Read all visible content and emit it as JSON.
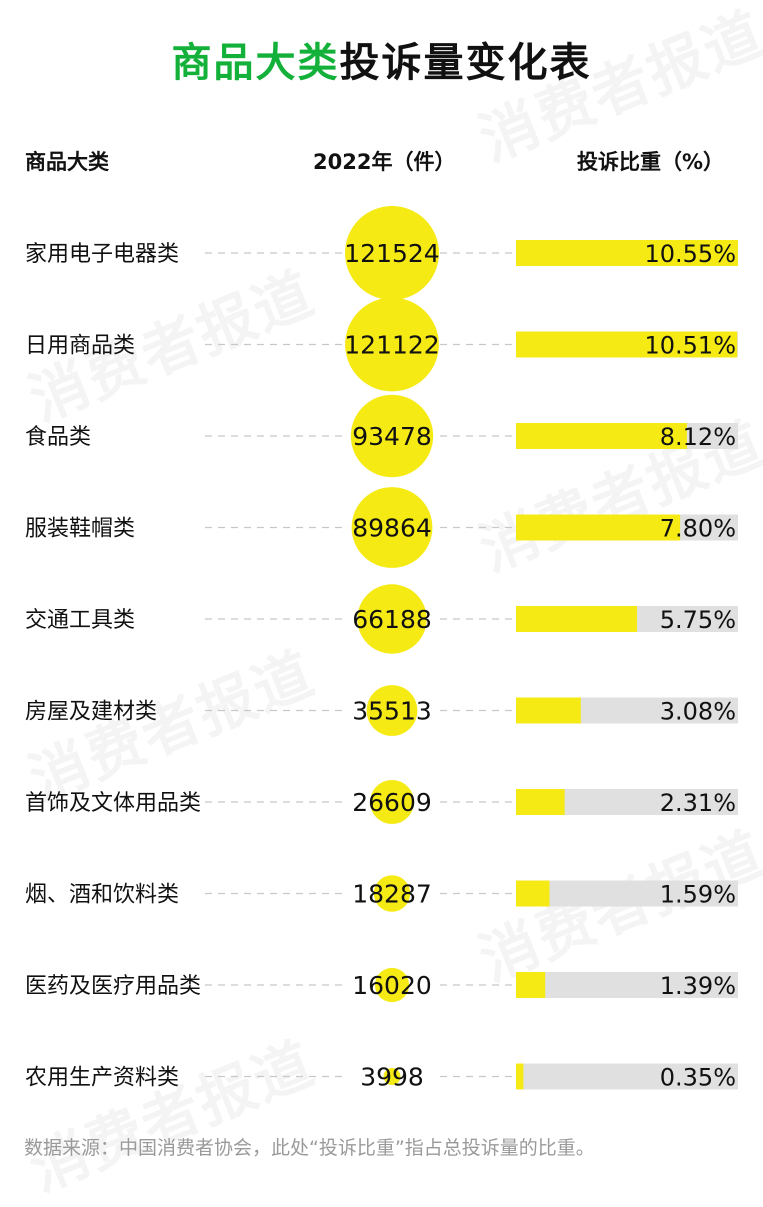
{
  "title": {
    "highlight": "商品大类",
    "rest": "投诉量变化表"
  },
  "headers": {
    "category": "商品大类",
    "count": "2022年（件）",
    "share": "投诉比重（%）"
  },
  "watermark": "消费者报道",
  "note": "数据来源：中国消费者协会，此处“投诉比重”指占总投诉量的比重。",
  "colors": {
    "title_accent": "#13b13a",
    "bubble": "#f5ea14",
    "bar": "#f5ea14",
    "bar_track": "#e0e0e0",
    "dash": "#c8c8c8"
  },
  "chart_data": {
    "type": "table",
    "categories": [
      "家用电子电器类",
      "日用商品类",
      "食品类",
      "服装鞋帽类",
      "交通工具类",
      "房屋及建材类",
      "首饰及文体用品类",
      "烟、酒和饮料类",
      "医药及医疗用品类",
      "农用生产资料类"
    ],
    "series": [
      {
        "name": "2022年（件）",
        "encoding": "bubble",
        "values": [
          121524,
          121122,
          93478,
          89864,
          66188,
          35513,
          26609,
          18287,
          16020,
          3998
        ]
      },
      {
        "name": "投诉比重（%）",
        "encoding": "bar",
        "values": [
          10.55,
          10.51,
          8.12,
          7.8,
          5.75,
          3.08,
          2.31,
          1.59,
          1.39,
          0.35
        ]
      }
    ],
    "share_labels": [
      "10.55%",
      "10.51%",
      "8.12%",
      "7.80%",
      "5.75%",
      "3.08%",
      "2.31%",
      "1.59%",
      "1.39%",
      "0.35%"
    ],
    "bar_max_percent": 10.55
  }
}
